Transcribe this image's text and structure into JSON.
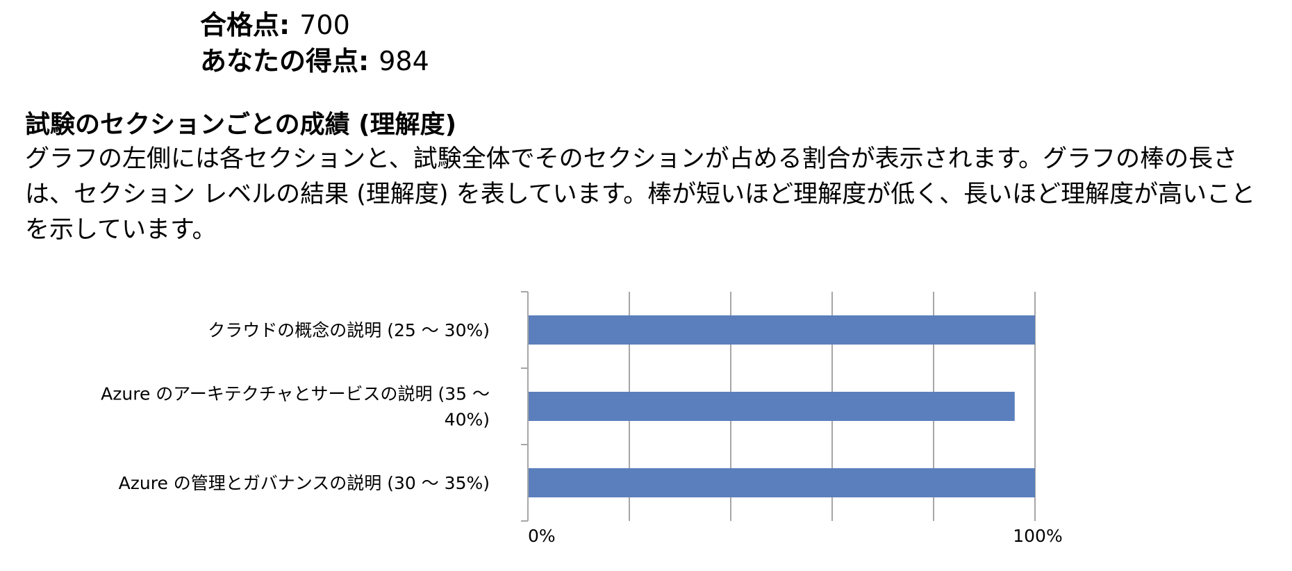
{
  "score": {
    "passing_label": "合格点",
    "passing_value": "700",
    "your_label": "あなたの得点",
    "your_value": "984",
    "colon": ":"
  },
  "section": {
    "title": "試験のセクションごとの成績 (理解度)",
    "description": "グラフの左側には各セクションと、試験全体でそのセクションが占める割合が表示されます。グラフの棒の長さは、セクション レベルの結果 (理解度) を表しています。棒が短いほど理解度が低く、長いほど理解度が高いことを示しています。"
  },
  "chart_data": {
    "type": "bar",
    "orientation": "horizontal",
    "categories": [
      "クラウドの概念の説明 (25 ～ 30%)",
      "Azure のアーキテクチャとサービスの説明 (35 ～ 40%)",
      "Azure の管理とガバナンスの説明 (30 ～ 35%)"
    ],
    "category_lines": [
      [
        "クラウドの概念の説明 (25 ～ 30%)"
      ],
      [
        "Azure のアーキテクチャとサービスの説明 (35 ～",
        "40%)"
      ],
      [
        "Azure の管理とガバナンスの説明 (30 ～ 35%)"
      ]
    ],
    "values": [
      100,
      96,
      100
    ],
    "xlim": [
      0,
      100
    ],
    "gridlines": [
      0,
      20,
      40,
      60,
      80,
      100
    ],
    "tick_labels": [
      {
        "value": 0,
        "label": "0%"
      },
      {
        "value": 100,
        "label": "100%"
      }
    ],
    "grid": true,
    "bar_color": "#5B7FBC",
    "grid_color": "#A6A6A6"
  }
}
